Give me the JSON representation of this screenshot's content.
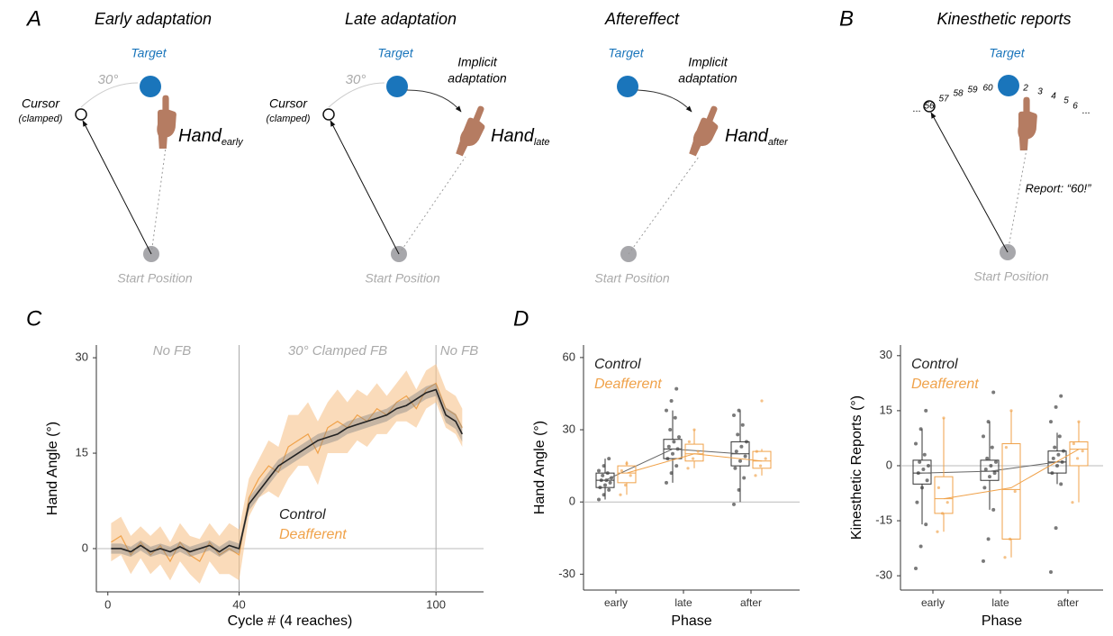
{
  "diagram": {
    "panels": [
      {
        "letter": "A",
        "title": "Early adaptation",
        "target": "Target",
        "angle": "30°",
        "cursor": "Cursor",
        "cursor_note": "(clamped)",
        "hand": "Hand",
        "hand_sub": "early",
        "start": "Start Position"
      },
      {
        "title": "Late adaptation",
        "target": "Target",
        "angle": "30°",
        "cursor": "Cursor",
        "cursor_note": "(clamped)",
        "implicit": [
          "Implicit",
          "adaptation"
        ],
        "hand": "Hand",
        "hand_sub": "late",
        "start": "Start Position"
      },
      {
        "title": "Aftereffect",
        "target": "Target",
        "implicit": [
          "Implicit",
          "adaptation"
        ],
        "hand": "Hand",
        "hand_sub": "after",
        "start": "Start Position"
      },
      {
        "letter": "B",
        "title": "Kinesthetic reports",
        "target": "Target",
        "scale": [
          "56",
          "57",
          "58",
          "59",
          "60",
          "2",
          "3",
          "4",
          "5",
          "6"
        ],
        "ellipsis": "...",
        "report": "Report: “60!”",
        "start": "Start Position"
      }
    ]
  },
  "chart_data": [
    {
      "type": "line",
      "panel": "C",
      "x_label": "Cycle # (4 reaches)",
      "y_label": "Hand Angle (°)",
      "annotations": [
        "No FB",
        "30° Clamped FB",
        "No FB"
      ],
      "phase_boundaries": [
        40,
        100
      ],
      "hline": 0,
      "xlim": [
        -3.5,
        114.5
      ],
      "xticks": [
        0,
        40,
        100
      ],
      "ylim": [
        -6.8,
        32
      ],
      "yticks": [
        0,
        15,
        30
      ],
      "x": [
        1,
        4,
        7,
        10,
        13,
        16,
        19,
        22,
        25,
        28,
        31,
        34,
        37,
        40,
        43,
        46,
        49,
        52,
        55,
        58,
        61,
        64,
        67,
        70,
        73,
        76,
        79,
        82,
        85,
        88,
        91,
        94,
        97,
        100,
        103,
        106,
        108
      ],
      "series": [
        {
          "name": "Deafferent",
          "color": "#f0a24a",
          "values": [
            1,
            2,
            -1,
            1,
            -1,
            0.5,
            -2,
            1,
            -1,
            -2,
            1,
            -1,
            0,
            -1,
            8,
            11,
            13,
            12,
            16,
            17,
            18,
            15,
            19,
            20,
            19,
            21,
            20,
            22,
            21,
            23,
            24,
            22,
            25,
            26,
            22,
            21,
            19
          ],
          "error": [
            3,
            3,
            3,
            2.5,
            3,
            3,
            3,
            3,
            3,
            3.5,
            3,
            3,
            4,
            4,
            3,
            3,
            4,
            4,
            5,
            4,
            5,
            5,
            4,
            5,
            4,
            4,
            4,
            4,
            3,
            3,
            4,
            3,
            3,
            3,
            3,
            3,
            3
          ]
        },
        {
          "name": "Control",
          "color": "#222222",
          "values": [
            0,
            0,
            -0.5,
            0.5,
            -0.5,
            0,
            -0.5,
            0.3,
            -0.5,
            0,
            0.5,
            -0.5,
            0.5,
            0,
            7,
            9,
            11,
            13,
            14,
            15,
            16,
            17,
            17.5,
            18,
            19,
            19.5,
            20,
            20.5,
            21,
            22,
            22.5,
            23.5,
            24.5,
            25,
            21,
            20,
            18
          ],
          "error": [
            0.8,
            0.8,
            0.8,
            0.8,
            0.8,
            0.8,
            0.8,
            0.8,
            0.8,
            0.8,
            0.8,
            0.8,
            0.8,
            0.8,
            1,
            1,
            1,
            1,
            1,
            1,
            1,
            1,
            1,
            1,
            1,
            1,
            1,
            1,
            1,
            1,
            1,
            1,
            1,
            1,
            1.2,
            1.2,
            1.2
          ]
        }
      ]
    },
    {
      "type": "box",
      "panel": "D",
      "x_label": "Phase",
      "y_label": "Hand Angle (°)",
      "hline": 0,
      "categories": [
        "early",
        "late",
        "after"
      ],
      "ylim": [
        -36.6,
        65.2
      ],
      "yticks": [
        -30,
        0,
        30,
        60
      ],
      "series": [
        {
          "name": "Control",
          "color": "#222222",
          "means": [
            9,
            22,
            20
          ],
          "boxes": [
            {
              "min": 1,
              "q1": 6,
              "median": 9,
              "q3": 12,
              "max": 18
            },
            {
              "min": 8,
              "q1": 18,
              "median": 22,
              "q3": 26,
              "max": 38
            },
            {
              "min": 0,
              "q1": 15,
              "median": 20,
              "q3": 25,
              "max": 38
            }
          ],
          "points": [
            [
              1,
              3,
              5,
              6,
              7,
              8,
              9,
              9,
              10,
              11,
              12,
              13,
              15,
              18
            ],
            [
              8,
              12,
              15,
              18,
              20,
              22,
              23,
              25,
              27,
              30,
              35,
              38,
              42,
              47
            ],
            [
              -1,
              5,
              10,
              14,
              17,
              19,
              21,
              23,
              25,
              28,
              32,
              36,
              38
            ]
          ]
        },
        {
          "name": "Deafferent",
          "color": "#f0a24a",
          "means": [
            12,
            20,
            17
          ],
          "boxes": [
            {
              "min": 3,
              "q1": 8,
              "median": 12,
              "q3": 15,
              "max": 17
            },
            {
              "min": 14,
              "q1": 17,
              "median": 20,
              "q3": 24,
              "max": 30
            },
            {
              "min": 11,
              "q1": 14,
              "median": 17,
              "q3": 21,
              "max": 22
            }
          ],
          "points": [
            [
              3,
              7,
              11,
              13,
              16
            ],
            [
              14,
              18,
              21,
              25,
              30
            ],
            [
              11,
              15,
              18,
              21,
              42
            ]
          ]
        }
      ]
    },
    {
      "type": "box",
      "x_label": "Phase",
      "y_label": "Kinesthetic Reports (°)",
      "hline": 0,
      "categories": [
        "early",
        "late",
        "after"
      ],
      "ylim": [
        -33.9,
        32.9
      ],
      "yticks": [
        -30,
        -15,
        0,
        15,
        30
      ],
      "series": [
        {
          "name": "Control",
          "color": "#222222",
          "means": [
            -2,
            -1.5,
            1
          ],
          "boxes": [
            {
              "min": -16,
              "q1": -5,
              "median": -2,
              "q3": 1.5,
              "max": 10
            },
            {
              "min": -12,
              "q1": -4,
              "median": -1.5,
              "q3": 1.5,
              "max": 12
            },
            {
              "min": -5,
              "q1": -2,
              "median": 1,
              "q3": 4,
              "max": 9
            }
          ],
          "points": [
            [
              -28,
              -22,
              -16,
              -10,
              -6,
              -4,
              -2,
              -1,
              0,
              1,
              3,
              6,
              10,
              15
            ],
            [
              -26,
              -20,
              -12,
              -6,
              -3,
              -2,
              -1,
              0,
              1,
              2,
              5,
              8,
              12,
              20
            ],
            [
              -29,
              -17,
              -5,
              -2,
              0,
              1,
              2,
              3,
              4,
              5,
              8,
              12,
              16,
              19
            ]
          ]
        },
        {
          "name": "Deafferent",
          "color": "#f0a24a",
          "means": [
            -9,
            -6,
            4.5
          ],
          "boxes": [
            {
              "min": -18,
              "q1": -13,
              "median": -9,
              "q3": -3,
              "max": 13
            },
            {
              "min": -25,
              "q1": -20,
              "median": -6.5,
              "q3": 6,
              "max": 15
            },
            {
              "min": -10,
              "q1": 0,
              "median": 4.5,
              "q3": 6.5,
              "max": 12
            }
          ],
          "points": [
            [
              -18,
              -13,
              -10,
              -6,
              13
            ],
            [
              -25,
              -20,
              -7,
              5,
              15
            ],
            [
              -10,
              2,
              4,
              6,
              12
            ]
          ]
        }
      ]
    }
  ]
}
